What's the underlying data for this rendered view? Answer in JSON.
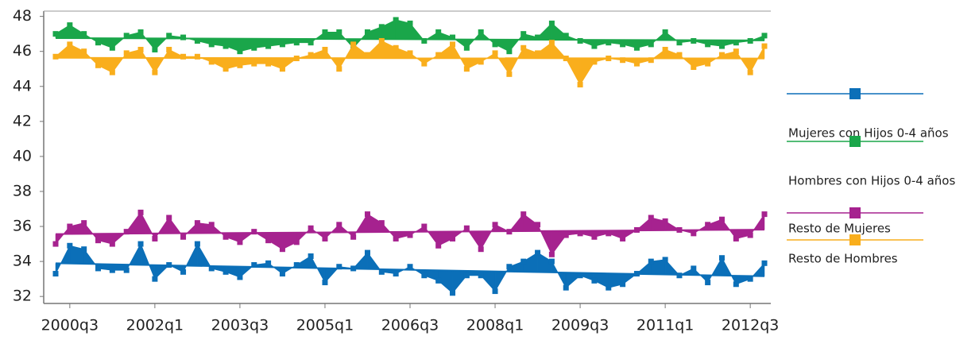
{
  "chart_data": {
    "type": "line",
    "categories": [
      null,
      "2000q3",
      null,
      null,
      null,
      null,
      null,
      "2002q1",
      null,
      null,
      null,
      null,
      null,
      "2003q3",
      null,
      null,
      null,
      null,
      null,
      "2005q1",
      null,
      null,
      null,
      null,
      null,
      "2006q3",
      null,
      null,
      null,
      null,
      null,
      "2008q1",
      null,
      null,
      null,
      null,
      null,
      "2009q3",
      null,
      null,
      null,
      null,
      null,
      "2011q1",
      null,
      null,
      null,
      null,
      null,
      "2012q3",
      null
    ],
    "series": [
      {
        "name": "Mujeres con Hijos 0-4 años",
        "color": "#0b6fb8",
        "values": [
          33.3,
          34.9,
          34.7,
          33.6,
          33.5,
          33.5,
          35.0,
          33.0,
          33.8,
          33.4,
          35.0,
          33.6,
          33.4,
          33.1,
          33.8,
          33.9,
          33.3,
          33.8,
          34.3,
          32.8,
          33.7,
          33.6,
          34.5,
          33.4,
          33.3,
          33.7,
          33.2,
          32.9,
          32.2,
          33.2,
          33.2,
          32.3,
          33.7,
          34.0,
          34.5,
          34.0,
          32.5,
          33.2,
          32.9,
          32.5,
          32.7,
          33.3,
          34.0,
          34.1,
          33.2,
          33.6,
          32.8,
          34.2,
          32.7,
          33.0,
          33.9
        ]
      },
      {
        "name": "Hombres con Hijos 0-4 años",
        "color": "#1aa64a",
        "values": [
          47.0,
          47.5,
          47.0,
          46.5,
          46.2,
          46.9,
          47.1,
          46.1,
          46.9,
          46.8,
          46.6,
          46.4,
          46.3,
          46.0,
          46.2,
          46.3,
          46.4,
          46.5,
          46.5,
          47.1,
          47.1,
          46.2,
          47.1,
          47.4,
          47.8,
          47.6,
          46.6,
          47.1,
          46.8,
          46.2,
          47.1,
          46.4,
          46.0,
          47.0,
          46.8,
          47.6,
          46.9,
          46.6,
          46.3,
          46.5,
          46.4,
          46.2,
          46.4,
          47.1,
          46.5,
          46.6,
          46.4,
          46.3,
          46.5,
          46.6,
          46.9
        ]
      },
      {
        "name": "Resto de Mujeres",
        "color": "#a6228f",
        "values": [
          35.0,
          36.0,
          36.2,
          35.2,
          35.0,
          35.7,
          36.8,
          35.3,
          36.5,
          35.4,
          36.2,
          36.1,
          35.4,
          35.1,
          35.7,
          35.2,
          34.7,
          35.1,
          35.9,
          35.3,
          36.1,
          35.4,
          36.7,
          36.2,
          35.3,
          35.5,
          36.0,
          34.9,
          35.3,
          35.9,
          34.7,
          36.1,
          35.7,
          36.7,
          36.1,
          34.4,
          35.5,
          35.6,
          35.4,
          35.6,
          35.3,
          35.8,
          36.5,
          36.3,
          35.8,
          35.6,
          36.1,
          36.4,
          35.3,
          35.5,
          36.7
        ]
      },
      {
        "name": "Resto de Hombres",
        "color": "#f9ae1c",
        "values": [
          45.7,
          46.4,
          46.0,
          45.2,
          44.8,
          45.9,
          46.1,
          44.8,
          46.1,
          45.7,
          45.7,
          45.4,
          45.0,
          45.2,
          45.3,
          45.3,
          45.0,
          45.6,
          45.8,
          46.1,
          45.0,
          46.4,
          45.8,
          46.6,
          46.2,
          45.9,
          45.3,
          45.8,
          46.4,
          45.0,
          45.4,
          45.9,
          44.7,
          46.2,
          45.9,
          46.5,
          45.6,
          44.1,
          45.4,
          45.6,
          45.5,
          45.3,
          45.5,
          46.1,
          45.8,
          45.1,
          45.3,
          45.8,
          46.0,
          44.8,
          46.3
        ]
      }
    ],
    "ylim": [
      31.6,
      48.3
    ],
    "yticks": [
      32,
      34,
      36,
      38,
      40,
      42,
      44,
      46,
      48
    ],
    "grid": false
  }
}
